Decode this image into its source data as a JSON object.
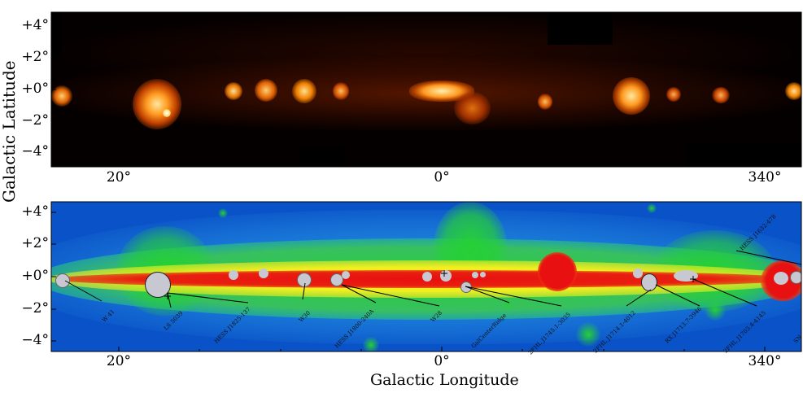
{
  "axes": {
    "ylabel": "Galactic Latitude",
    "xlabel": "Galactic Longitude",
    "lat_ticks_top": [
      "+4°",
      "+2°",
      "+0°",
      "−2°",
      "−4°"
    ],
    "lat_ticks_bottom": [
      "+4°",
      "+2°",
      "+0°",
      "−2°",
      "−4°"
    ],
    "lon_ticks_top": [
      "20°",
      "0°",
      "340°"
    ],
    "lon_ticks_bottom": [
      "20°",
      "0°",
      "340°"
    ]
  },
  "sources": [
    {
      "name": "W 41"
    },
    {
      "name": "LS 5039"
    },
    {
      "name": "HESS J1825-137"
    },
    {
      "name": "W30"
    },
    {
      "name": "HESS J1800-240A"
    },
    {
      "name": "W28"
    },
    {
      "name": "GalCenterRidge"
    },
    {
      "name": "2FHL J1745.1-3035"
    },
    {
      "name": "2FHL J1714.1-4012"
    },
    {
      "name": "RX J1713.7-3946"
    },
    {
      "name": "2FHL J1703.4-4145"
    },
    {
      "name": "HESS J1632-478"
    },
    {
      "name": "SN"
    }
  ],
  "colors": {
    "top_background": "#050000",
    "bottom_background": "#0a52c8",
    "bottom_band_green": "#26d035",
    "bottom_band_yellow": "#f2ee20",
    "bottom_band_red": "#e81010",
    "source_fill": "#c8c8d2"
  }
}
